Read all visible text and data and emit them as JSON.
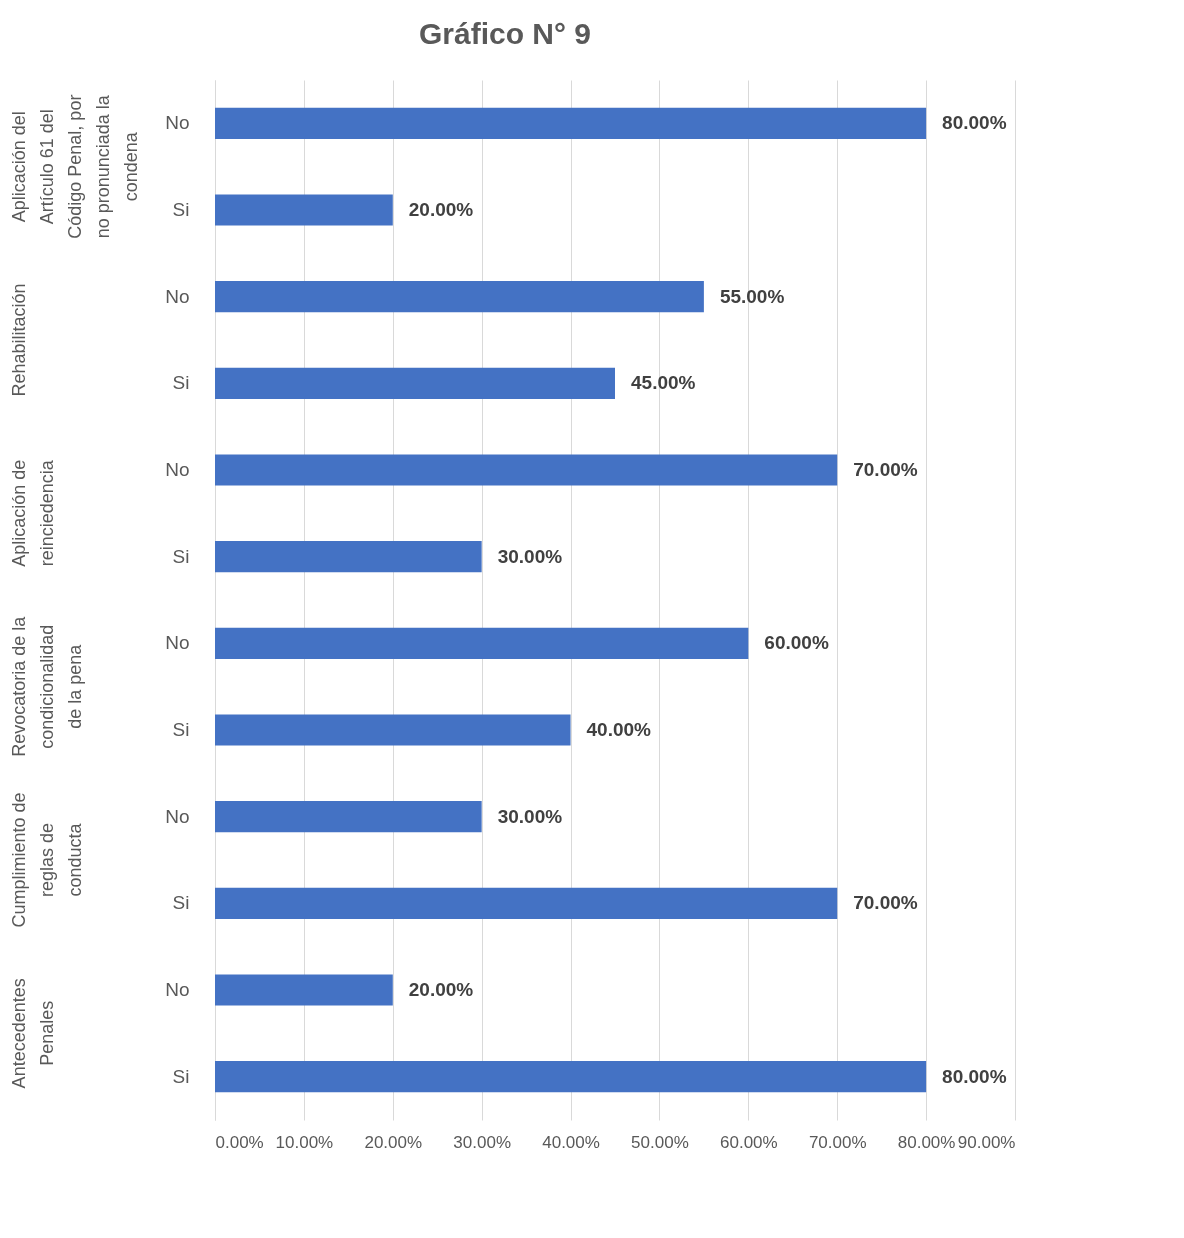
{
  "chart_data": {
    "type": "bar",
    "orientation": "horizontal",
    "title": "Gráfico N° 9",
    "categories": [
      "No",
      "Si",
      "No",
      "Si",
      "No",
      "Si",
      "No",
      "Si",
      "No",
      "Si",
      "No",
      "Si"
    ],
    "values": [
      80,
      20,
      55,
      45,
      70,
      30,
      60,
      40,
      30,
      70,
      20,
      80
    ],
    "value_labels": [
      "80.00%",
      "20.00%",
      "55.00%",
      "45.00%",
      "70.00%",
      "30.00%",
      "60.00%",
      "40.00%",
      "30.00%",
      "70.00%",
      "20.00%",
      "80.00%"
    ],
    "color": "#4472c4",
    "xlim": [
      0,
      90
    ],
    "xticks": [
      {
        "value": 0,
        "label": "0.00%"
      },
      {
        "value": 10,
        "label": "10.00%"
      },
      {
        "value": 20,
        "label": "20.00%"
      },
      {
        "value": 30,
        "label": "30.00%"
      },
      {
        "value": 40,
        "label": "40.00%"
      },
      {
        "value": 50,
        "label": "50.00%"
      },
      {
        "value": 60,
        "label": "60.00%"
      },
      {
        "value": 70,
        "label": "70.00%"
      },
      {
        "value": 80,
        "label": "80.00%"
      },
      {
        "value": 90,
        "label": "90.00%"
      }
    ],
    "grid": "x",
    "annotations": [
      "Aplicación del Artículo 61 del Código Penal, por no pronunciada la condena",
      "Rehabilitación",
      "Aplicación de reinciedencia",
      "Revocatoria de la condicionalidad de la pena",
      "Cumplimiento de reglas de conducta",
      "Antecedentes Penales"
    ]
  }
}
